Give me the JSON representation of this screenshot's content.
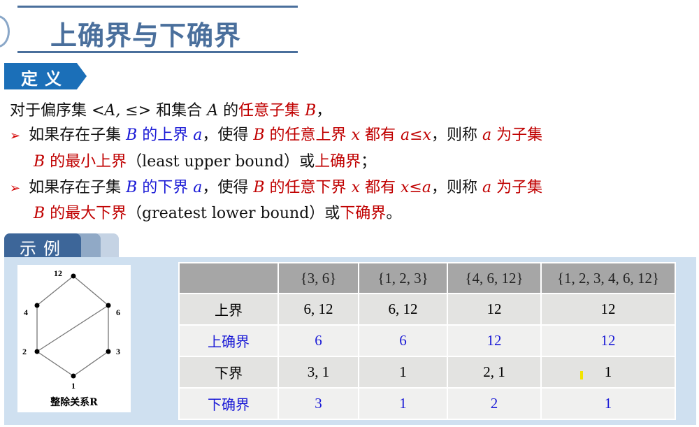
{
  "title": "上确界与下确界",
  "definition_tag": "定义",
  "lines": [
    [
      {
        "t": "对于偏序集 "
      },
      {
        "t": "<A, ≤>",
        "i": true
      },
      {
        "t": " 和集合 "
      },
      {
        "t": "A",
        "i": true
      },
      {
        "t": " 的"
      },
      {
        "t": "任意子集",
        "c": "red"
      },
      {
        "t": " "
      },
      {
        "t": "B",
        "i": true,
        "c": "red"
      },
      {
        "t": "，"
      }
    ],
    [
      {
        "t": "如果存在子集 "
      },
      {
        "t": "B",
        "i": true,
        "c": "blue"
      },
      {
        "t": " 的上界 ",
        "c": "blue"
      },
      {
        "t": "a",
        "i": true,
        "c": "blue"
      },
      {
        "t": "，使得 "
      },
      {
        "t": "B",
        "i": true,
        "c": "red"
      },
      {
        "t": " 的任意上界 ",
        "c": "red"
      },
      {
        "t": "x",
        "i": true,
        "c": "red"
      },
      {
        "t": " 都有 ",
        "c": "red"
      },
      {
        "t": "a≤x",
        "i": true,
        "c": "red"
      },
      {
        "t": "，则称 "
      },
      {
        "t": "a",
        "i": true,
        "c": "red"
      },
      {
        "t": " 为子集",
        "c": "red"
      }
    ],
    [
      {
        "t": "B",
        "i": true,
        "c": "red"
      },
      {
        "t": " 的最小上界",
        "c": "red"
      },
      {
        "t": "（least upper bound）或"
      },
      {
        "t": "上确界",
        "c": "red"
      },
      {
        "t": "；"
      }
    ],
    [
      {
        "t": "如果存在子集 "
      },
      {
        "t": "B",
        "i": true,
        "c": "blue"
      },
      {
        "t": " 的下界 ",
        "c": "blue"
      },
      {
        "t": "a",
        "i": true,
        "c": "blue"
      },
      {
        "t": "，使得 "
      },
      {
        "t": "B",
        "i": true,
        "c": "red"
      },
      {
        "t": " 的任意下界 ",
        "c": "red"
      },
      {
        "t": "x",
        "i": true,
        "c": "red"
      },
      {
        "t": " 都有 ",
        "c": "red"
      },
      {
        "t": "x≤a",
        "i": true,
        "c": "red"
      },
      {
        "t": "，则称 "
      },
      {
        "t": "a",
        "i": true,
        "c": "red"
      },
      {
        "t": " 为子集",
        "c": "red"
      }
    ],
    [
      {
        "t": "B",
        "i": true,
        "c": "red"
      },
      {
        "t": " 的最大下界",
        "c": "red"
      },
      {
        "t": "（greatest lower bound）或"
      },
      {
        "t": "下确界",
        "c": "red"
      },
      {
        "t": "。"
      }
    ]
  ],
  "bullet_arrow": "➢",
  "example_tag": "示例",
  "diagram": {
    "caption": "整除关系R",
    "nodes": [
      "12",
      "4",
      "6",
      "2",
      "3",
      "1"
    ],
    "edges": [
      [
        "12",
        "4"
      ],
      [
        "12",
        "6"
      ],
      [
        "4",
        "2"
      ],
      [
        "6",
        "2"
      ],
      [
        "6",
        "3"
      ],
      [
        "2",
        "1"
      ],
      [
        "3",
        "1"
      ]
    ]
  },
  "table": {
    "headers": [
      "",
      "{3, 6}",
      "{1, 2, 3}",
      "{4, 6, 12}",
      "{1, 2, 3, 4, 6, 12}"
    ],
    "rows": [
      {
        "label": "上界",
        "cells": [
          "6, 12",
          "6, 12",
          "12",
          "12"
        ],
        "highlight": false
      },
      {
        "label": "上确界",
        "cells": [
          "6",
          "6",
          "12",
          "12"
        ],
        "highlight": true
      },
      {
        "label": "下界",
        "cells": [
          "3, 1",
          "1",
          "2, 1",
          "1"
        ],
        "highlight": false
      },
      {
        "label": "下确界",
        "cells": [
          "3",
          "1",
          "2",
          "1"
        ],
        "highlight": true
      }
    ]
  },
  "colors": {
    "title": "#4a6f9c",
    "red": "#c00000",
    "blue": "#1a1ad6",
    "tag": "#1b6fb8"
  }
}
